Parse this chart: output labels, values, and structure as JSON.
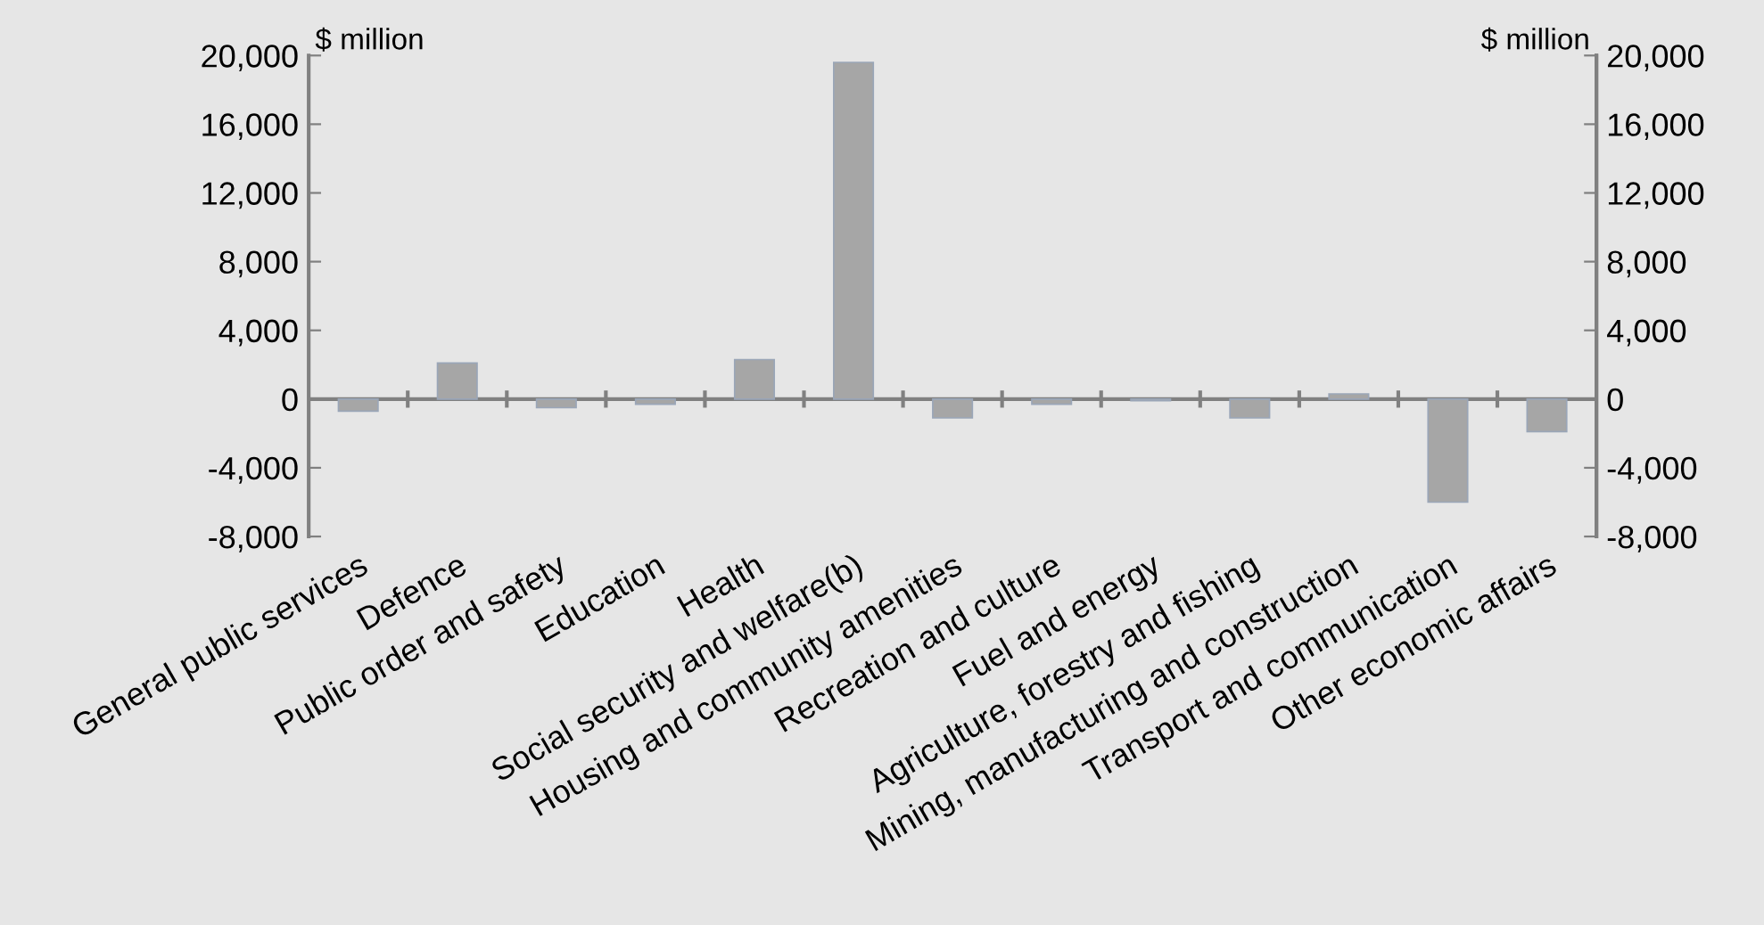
{
  "chart_data": {
    "type": "bar",
    "ylabel": "$ million",
    "y2label": "$ million",
    "categories": [
      "General public services",
      "Defence",
      "Public order and safety",
      "Education",
      "Health",
      "Social security and welfare(b)",
      "Housing and community amenities",
      "Recreation and culture",
      "Fuel and energy",
      "Agriculture, forestry and fishing",
      "Mining, manufacturing and construction",
      "Transport and communication",
      "Other economic affairs"
    ],
    "values": [
      -700,
      2100,
      -500,
      -300,
      2300,
      19600,
      -1100,
      -300,
      -100,
      -1100,
      300,
      -6000,
      -1900
    ],
    "color": "#a6a6a6",
    "ylim": [
      -8000,
      20000
    ],
    "yticks": [
      {
        "value": -8000,
        "label": "-8,000"
      },
      {
        "value": -4000,
        "label": "-4,000"
      },
      0,
      {
        "value": 4000,
        "label": "4,000"
      },
      {
        "value": 8000,
        "label": "8,000"
      },
      {
        "value": 12000,
        "label": "12,000"
      },
      {
        "value": 16000,
        "label": "16,000"
      },
      {
        "value": 20000,
        "label": "20,000"
      }
    ],
    "y2lim": [
      -8000,
      20000
    ],
    "y2ticks": [
      {
        "value": -8000,
        "label": "-8,000"
      },
      {
        "value": -4000,
        "label": "-4,000"
      },
      0,
      {
        "value": 4000,
        "label": "4,000"
      },
      {
        "value": 8000,
        "label": "8,000"
      },
      {
        "value": 12000,
        "label": "12,000"
      },
      {
        "value": 16000,
        "label": "16,000"
      },
      {
        "value": 20000,
        "label": "20,000"
      }
    ],
    "legend": false
  }
}
